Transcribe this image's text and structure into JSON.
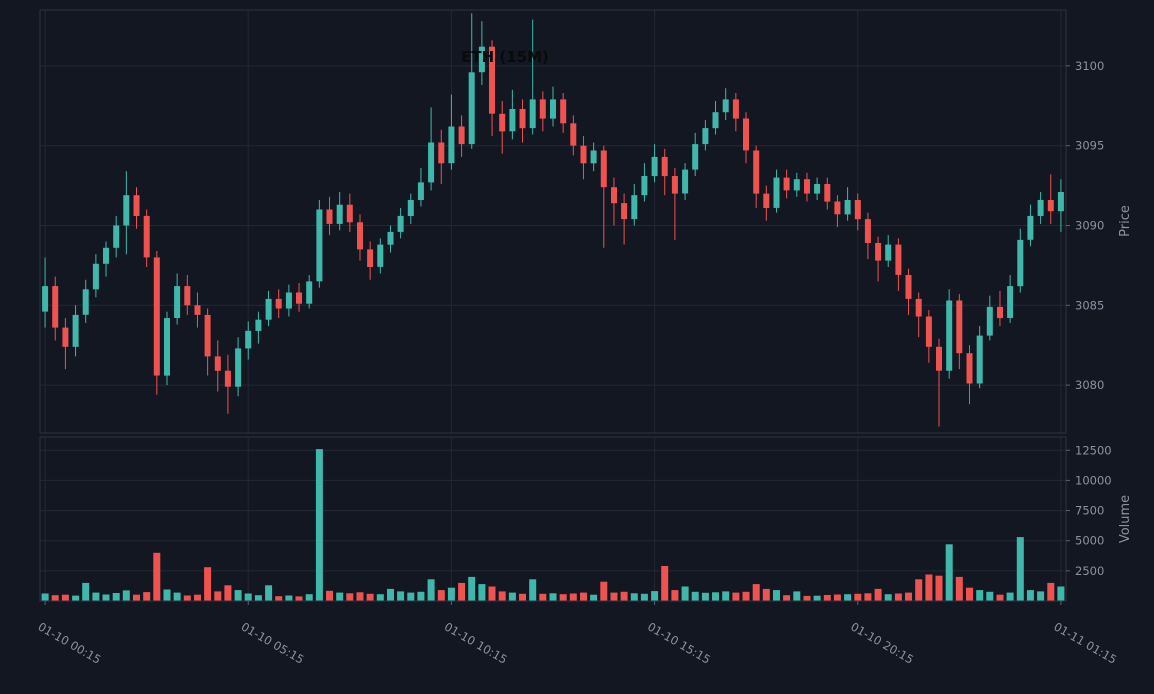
{
  "colors": {
    "background": "#131722",
    "grid": "#222836",
    "spine": "#2c3342",
    "up": "#3fb8ab",
    "down": "#ef5350",
    "tick_text": "#8b92a0",
    "tick_mark": "#5a6170",
    "title_text": "#0a0a0a"
  },
  "chart_data": {
    "type": "candlestick",
    "title": "ETH (15M)",
    "ylabel": "Price",
    "ylabel2": "Volume",
    "grid": true,
    "legend": false,
    "price_ticks": [
      3080,
      3085,
      3090,
      3095,
      3100
    ],
    "volume_ticks": [
      2500,
      5000,
      7500,
      10000,
      12500
    ],
    "price_range": [
      3077.0,
      3103.5
    ],
    "volume_range": [
      0,
      13600
    ],
    "x_ticks": {
      "indices": [
        0,
        20,
        40,
        60,
        80,
        100
      ],
      "labels": [
        "01-10 00:15",
        "01-10 05:15",
        "01-10 10:15",
        "01-10 15:15",
        "01-10 20:15",
        "01-11 01:15"
      ]
    },
    "columns": [
      "open",
      "high",
      "low",
      "close",
      "volume"
    ],
    "candles": [
      [
        3084.6,
        3088.0,
        3083.6,
        3086.2,
        620
      ],
      [
        3086.2,
        3086.8,
        3082.8,
        3083.6,
        480
      ],
      [
        3083.6,
        3084.2,
        3081.0,
        3082.4,
        520
      ],
      [
        3082.4,
        3085.0,
        3081.8,
        3084.4,
        450
      ],
      [
        3084.4,
        3086.6,
        3083.9,
        3086.0,
        1500
      ],
      [
        3086.0,
        3088.2,
        3085.5,
        3087.6,
        700
      ],
      [
        3087.6,
        3089.0,
        3086.8,
        3088.6,
        540
      ],
      [
        3088.6,
        3090.6,
        3088.0,
        3090.0,
        660
      ],
      [
        3090.0,
        3093.4,
        3088.2,
        3091.9,
        880
      ],
      [
        3091.9,
        3092.4,
        3089.8,
        3090.6,
        520
      ],
      [
        3090.6,
        3091.0,
        3087.4,
        3088.0,
        740
      ],
      [
        3088.0,
        3088.4,
        3079.4,
        3080.6,
        4000
      ],
      [
        3080.6,
        3084.6,
        3080.0,
        3084.2,
        950
      ],
      [
        3084.2,
        3087.0,
        3083.8,
        3086.2,
        700
      ],
      [
        3086.2,
        3086.9,
        3084.4,
        3085.0,
        460
      ],
      [
        3085.0,
        3085.8,
        3083.6,
        3084.4,
        520
      ],
      [
        3084.4,
        3084.8,
        3080.6,
        3081.8,
        2800
      ],
      [
        3081.8,
        3082.8,
        3079.6,
        3080.9,
        800
      ],
      [
        3080.9,
        3081.9,
        3078.2,
        3079.9,
        1300
      ],
      [
        3079.9,
        3083.0,
        3079.3,
        3082.3,
        900
      ],
      [
        3082.3,
        3084.0,
        3081.6,
        3083.4,
        620
      ],
      [
        3083.4,
        3084.6,
        3082.6,
        3084.1,
        480
      ],
      [
        3084.1,
        3085.9,
        3083.7,
        3085.4,
        1300
      ],
      [
        3085.4,
        3086.0,
        3084.2,
        3084.8,
        400
      ],
      [
        3084.8,
        3086.3,
        3084.3,
        3085.8,
        460
      ],
      [
        3085.8,
        3086.4,
        3084.6,
        3085.1,
        380
      ],
      [
        3085.1,
        3086.9,
        3084.8,
        3086.5,
        560
      ],
      [
        3086.5,
        3091.6,
        3086.1,
        3091.0,
        12600
      ],
      [
        3091.0,
        3091.8,
        3089.4,
        3090.1,
        850
      ],
      [
        3090.1,
        3092.1,
        3089.7,
        3091.3,
        700
      ],
      [
        3091.3,
        3092.0,
        3089.6,
        3090.2,
        640
      ],
      [
        3090.2,
        3090.7,
        3087.8,
        3088.5,
        720
      ],
      [
        3088.5,
        3089.0,
        3086.6,
        3087.4,
        600
      ],
      [
        3087.4,
        3089.2,
        3087.0,
        3088.8,
        560
      ],
      [
        3088.8,
        3090.0,
        3088.3,
        3089.6,
        1000
      ],
      [
        3089.6,
        3091.1,
        3089.2,
        3090.6,
        800
      ],
      [
        3090.6,
        3092.0,
        3090.1,
        3091.6,
        700
      ],
      [
        3091.6,
        3093.6,
        3091.2,
        3092.7,
        760
      ],
      [
        3092.7,
        3097.4,
        3092.2,
        3095.2,
        1800
      ],
      [
        3095.2,
        3096.0,
        3092.6,
        3093.9,
        900
      ],
      [
        3093.9,
        3098.2,
        3093.5,
        3096.2,
        1100
      ],
      [
        3096.2,
        3096.9,
        3094.3,
        3095.1,
        1500
      ],
      [
        3095.1,
        3103.3,
        3094.8,
        3099.6,
        2000
      ],
      [
        3099.6,
        3102.8,
        3098.8,
        3101.2,
        1400
      ],
      [
        3101.2,
        3101.6,
        3095.6,
        3097.0,
        1200
      ],
      [
        3097.0,
        3097.8,
        3094.5,
        3095.9,
        800
      ],
      [
        3095.9,
        3098.5,
        3095.4,
        3097.3,
        700
      ],
      [
        3097.3,
        3097.9,
        3095.2,
        3096.1,
        600
      ],
      [
        3096.1,
        3102.9,
        3095.7,
        3097.9,
        1800
      ],
      [
        3097.9,
        3098.4,
        3095.9,
        3096.7,
        600
      ],
      [
        3096.7,
        3098.7,
        3096.2,
        3097.9,
        640
      ],
      [
        3097.9,
        3098.3,
        3095.8,
        3096.4,
        560
      ],
      [
        3096.4,
        3096.9,
        3094.4,
        3095.0,
        620
      ],
      [
        3095.0,
        3095.6,
        3092.9,
        3093.9,
        700
      ],
      [
        3093.9,
        3095.2,
        3093.4,
        3094.7,
        520
      ],
      [
        3094.7,
        3095.0,
        3088.6,
        3092.4,
        1600
      ],
      [
        3092.4,
        3093.0,
        3090.0,
        3091.4,
        700
      ],
      [
        3091.4,
        3092.0,
        3088.8,
        3090.4,
        760
      ],
      [
        3090.4,
        3092.6,
        3090.0,
        3091.9,
        640
      ],
      [
        3091.9,
        3093.9,
        3091.5,
        3093.1,
        600
      ],
      [
        3093.1,
        3095.1,
        3092.7,
        3094.3,
        820
      ],
      [
        3094.3,
        3094.8,
        3091.9,
        3093.1,
        2900
      ],
      [
        3093.1,
        3093.6,
        3089.1,
        3092.0,
        900
      ],
      [
        3092.0,
        3093.9,
        3091.6,
        3093.5,
        1200
      ],
      [
        3093.5,
        3095.8,
        3093.1,
        3095.1,
        760
      ],
      [
        3095.1,
        3096.6,
        3094.7,
        3096.1,
        680
      ],
      [
        3096.1,
        3097.8,
        3095.7,
        3097.1,
        720
      ],
      [
        3097.1,
        3098.6,
        3096.6,
        3097.9,
        800
      ],
      [
        3097.9,
        3098.3,
        3095.9,
        3096.7,
        700
      ],
      [
        3096.7,
        3097.1,
        3093.9,
        3094.7,
        760
      ],
      [
        3094.7,
        3095.0,
        3091.1,
        3092.0,
        1400
      ],
      [
        3092.0,
        3092.5,
        3090.3,
        3091.1,
        1000
      ],
      [
        3091.1,
        3093.5,
        3090.8,
        3093.0,
        900
      ],
      [
        3093.0,
        3093.5,
        3091.7,
        3092.2,
        480
      ],
      [
        3092.2,
        3093.3,
        3091.8,
        3092.9,
        800
      ],
      [
        3092.9,
        3093.3,
        3091.5,
        3092.0,
        420
      ],
      [
        3092.0,
        3093.0,
        3091.6,
        3092.6,
        440
      ],
      [
        3092.6,
        3093.0,
        3091.0,
        3091.5,
        500
      ],
      [
        3091.5,
        3091.9,
        3089.9,
        3090.7,
        540
      ],
      [
        3090.7,
        3092.4,
        3090.3,
        3091.6,
        560
      ],
      [
        3091.6,
        3092.0,
        3089.7,
        3090.4,
        600
      ],
      [
        3090.4,
        3090.8,
        3087.9,
        3088.9,
        640
      ],
      [
        3088.9,
        3089.3,
        3086.5,
        3087.8,
        1000
      ],
      [
        3087.8,
        3089.4,
        3087.4,
        3088.8,
        560
      ],
      [
        3088.8,
        3089.2,
        3085.9,
        3086.9,
        620
      ],
      [
        3086.9,
        3087.3,
        3084.4,
        3085.4,
        700
      ],
      [
        3085.4,
        3085.8,
        3083.0,
        3084.3,
        1800
      ],
      [
        3084.3,
        3084.7,
        3081.4,
        3082.4,
        2200
      ],
      [
        3082.4,
        3082.9,
        3077.4,
        3080.9,
        2100
      ],
      [
        3080.9,
        3086.0,
        3080.4,
        3085.3,
        4700
      ],
      [
        3085.3,
        3085.7,
        3081.0,
        3082.0,
        2000
      ],
      [
        3082.0,
        3082.5,
        3078.8,
        3080.1,
        1100
      ],
      [
        3080.1,
        3083.7,
        3079.8,
        3083.1,
        900
      ],
      [
        3083.1,
        3085.6,
        3082.8,
        3084.9,
        760
      ],
      [
        3084.9,
        3085.9,
        3083.7,
        3084.2,
        520
      ],
      [
        3084.2,
        3086.9,
        3083.9,
        3086.2,
        700
      ],
      [
        3086.2,
        3089.8,
        3085.8,
        3089.1,
        5300
      ],
      [
        3089.1,
        3091.3,
        3088.7,
        3090.6,
        900
      ],
      [
        3090.6,
        3092.1,
        3090.1,
        3091.6,
        800
      ],
      [
        3091.6,
        3093.2,
        3090.1,
        3090.9,
        1500
      ],
      [
        3090.9,
        3092.9,
        3089.6,
        3092.1,
        1200
      ]
    ]
  }
}
